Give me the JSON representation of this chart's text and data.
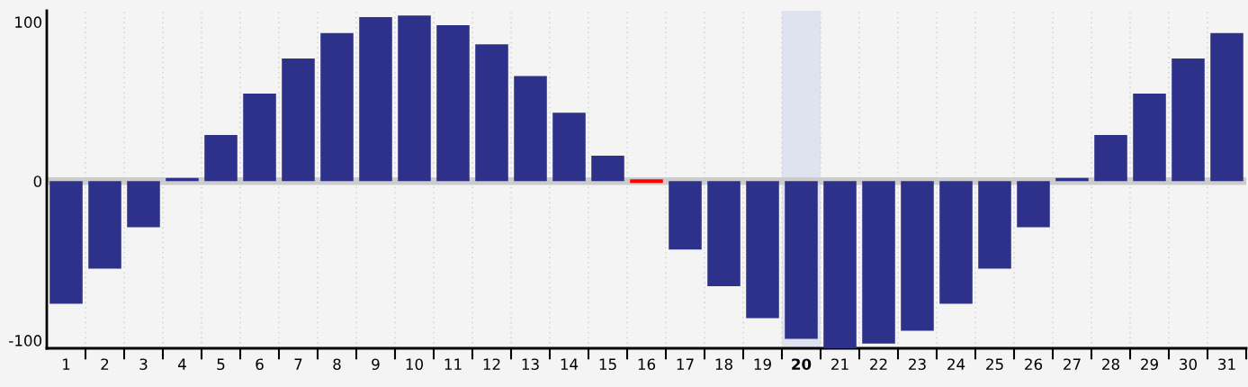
{
  "chart_data": {
    "type": "bar",
    "categories": [
      "1",
      "2",
      "3",
      "4",
      "5",
      "6",
      "7",
      "8",
      "9",
      "10",
      "11",
      "12",
      "13",
      "14",
      "15",
      "16",
      "17",
      "18",
      "19",
      "20",
      "21",
      "22",
      "23",
      "24",
      "25",
      "26",
      "27",
      "28",
      "29",
      "30",
      "31"
    ],
    "values": [
      -77,
      -55,
      -29,
      2,
      29,
      55,
      77,
      93,
      103,
      104,
      98,
      86,
      66,
      43,
      16,
      0,
      -43,
      -66,
      -86,
      -99,
      -105,
      -102,
      -94,
      -77,
      -55,
      -29,
      2,
      29,
      55,
      77,
      93
    ],
    "colors": [
      "#2e3189",
      "#2e3189",
      "#2e3189",
      "#2e3189",
      "#2e3189",
      "#2e3189",
      "#2e3189",
      "#2e3189",
      "#2e3189",
      "#2e3189",
      "#2e3189",
      "#2e3189",
      "#2e3189",
      "#2e3189",
      "#2e3189",
      "#ff0000",
      "#2e3189",
      "#2e3189",
      "#2e3189",
      "#2e3189",
      "#2e3189",
      "#2e3189",
      "#2e3189",
      "#2e3189",
      "#2e3189",
      "#2e3189",
      "#2e3189",
      "#2e3189",
      "#2e3189",
      "#2e3189",
      "#2e3189"
    ],
    "ylim": [
      -105,
      107
    ],
    "yticks": [
      -100,
      0,
      100
    ],
    "grid": "x",
    "ref_lines": [
      {
        "axis": "y",
        "value": 0,
        "color": "#cccccc"
      }
    ],
    "bands": [
      {
        "axis": "x",
        "from": "20",
        "to": "20",
        "color": "#dfe3f0"
      }
    ]
  }
}
